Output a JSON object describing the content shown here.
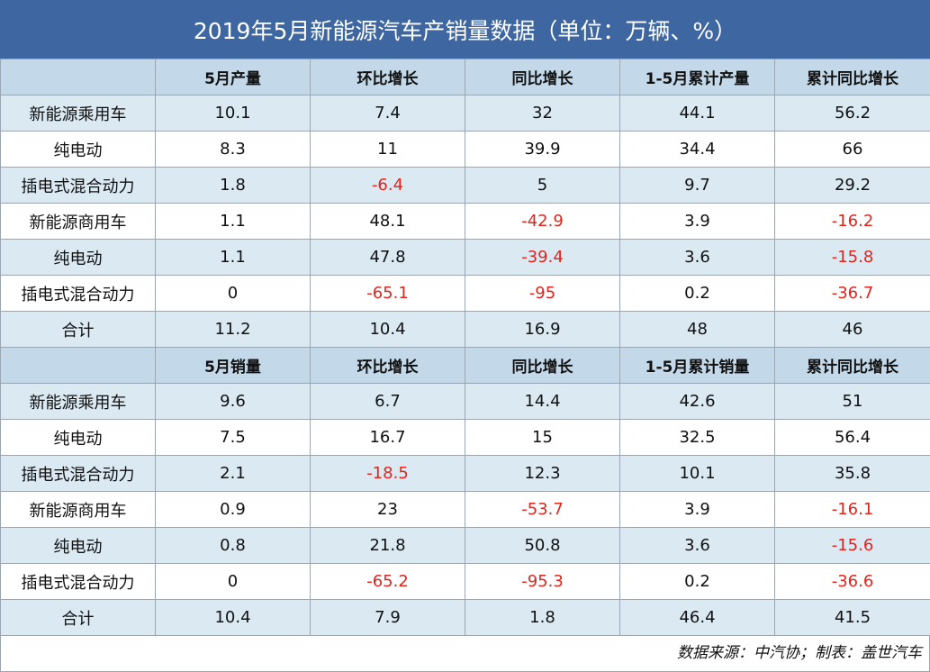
{
  "title": "2019年5月新能源汽车产销量数据（单位：万辆、%）",
  "production": {
    "headers": [
      "",
      "5月产量",
      "环比增长",
      "同比增长",
      "1-5月累计产量",
      "累计同比增长"
    ],
    "rows": [
      [
        "新能源乘用车",
        "10.1",
        "7.4",
        "32",
        "44.1",
        "56.2"
      ],
      [
        "纯电动",
        "8.3",
        "11",
        "39.9",
        "34.4",
        "66"
      ],
      [
        "插电式混合动力",
        "1.8",
        "-6.4",
        "5",
        "9.7",
        "29.2"
      ],
      [
        "新能源商用车",
        "1.1",
        "48.1",
        "-42.9",
        "3.9",
        "-16.2"
      ],
      [
        "纯电动",
        "1.1",
        "47.8",
        "-39.4",
        "3.6",
        "-15.8"
      ],
      [
        "插电式混合动力",
        "0",
        "-65.1",
        "-95",
        "0.2",
        "-36.7"
      ],
      [
        "合计",
        "11.2",
        "10.4",
        "16.9",
        "48",
        "46"
      ]
    ]
  },
  "sales": {
    "headers": [
      "",
      "5月销量",
      "环比增长",
      "同比增长",
      "1-5月累计销量",
      "累计同比增长"
    ],
    "rows": [
      [
        "新能源乘用车",
        "9.6",
        "6.7",
        "14.4",
        "42.6",
        "51"
      ],
      [
        "纯电动",
        "7.5",
        "16.7",
        "15",
        "32.5",
        "56.4"
      ],
      [
        "插电式混合动力",
        "2.1",
        "-18.5",
        "12.3",
        "10.1",
        "35.8"
      ],
      [
        "新能源商用车",
        "0.9",
        "23",
        "-53.7",
        "3.9",
        "-16.1"
      ],
      [
        "纯电动",
        "0.8",
        "21.8",
        "50.8",
        "3.6",
        "-15.6"
      ],
      [
        "插电式混合动力",
        "0",
        "-65.2",
        "-95.3",
        "0.2",
        "-36.6"
      ],
      [
        "合计",
        "10.4",
        "7.9",
        "1.8",
        "46.4",
        "41.5"
      ]
    ]
  },
  "source": "数据来源：中汽协；制表：盖世汽车",
  "colors": {
    "header_bg": "#3e66a0",
    "band": "#dbe9f3",
    "subheader": "#c3d8e9",
    "negative": "#e0251c"
  }
}
